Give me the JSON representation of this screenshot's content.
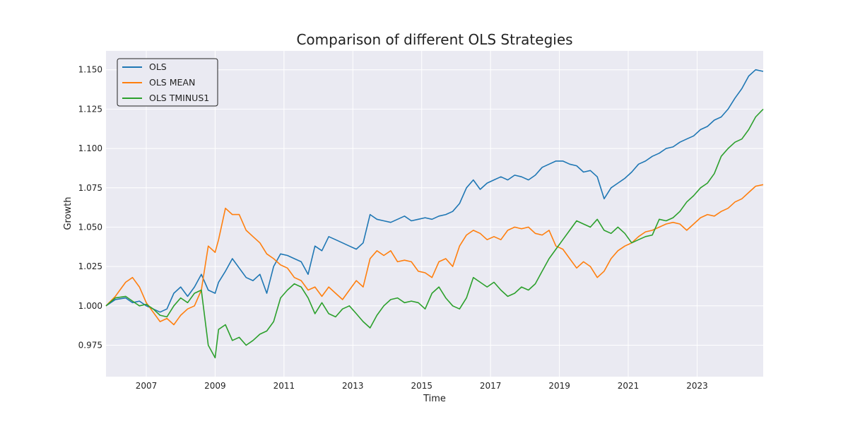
{
  "chart_data": {
    "type": "line",
    "title": "Comparison of different OLS Strategies",
    "xlabel": "Time",
    "ylabel": "Growth",
    "xlim": [
      2005.83,
      2024.92
    ],
    "ylim": [
      0.955,
      1.162
    ],
    "x_ticks": [
      2007,
      2009,
      2011,
      2013,
      2015,
      2017,
      2019,
      2021,
      2023
    ],
    "x_tick_labels": [
      "2007",
      "2009",
      "2011",
      "2013",
      "2015",
      "2017",
      "2019",
      "2021",
      "2023"
    ],
    "y_ticks": [
      0.975,
      1.0,
      1.025,
      1.05,
      1.075,
      1.1,
      1.125,
      1.15
    ],
    "y_tick_labels": [
      "0.975",
      "1.000",
      "1.025",
      "1.050",
      "1.075",
      "1.100",
      "1.125",
      "1.150"
    ],
    "grid": true,
    "legend_position": "top-left",
    "background": "#eaeaf2",
    "series": [
      {
        "name": "OLS",
        "color": "#1f77b4",
        "points": [
          [
            2005.83,
            1.0
          ],
          [
            2006.1,
            1.004
          ],
          [
            2006.4,
            1.005
          ],
          [
            2006.6,
            1.002
          ],
          [
            2006.8,
            1.003
          ],
          [
            2007.0,
            1.0
          ],
          [
            2007.2,
            0.998
          ],
          [
            2007.4,
            0.996
          ],
          [
            2007.6,
            0.998
          ],
          [
            2007.8,
            1.008
          ],
          [
            2008.0,
            1.012
          ],
          [
            2008.2,
            1.006
          ],
          [
            2008.4,
            1.012
          ],
          [
            2008.6,
            1.02
          ],
          [
            2008.8,
            1.01
          ],
          [
            2009.0,
            1.008
          ],
          [
            2009.1,
            1.015
          ],
          [
            2009.3,
            1.022
          ],
          [
            2009.5,
            1.03
          ],
          [
            2009.7,
            1.024
          ],
          [
            2009.9,
            1.018
          ],
          [
            2010.1,
            1.016
          ],
          [
            2010.3,
            1.02
          ],
          [
            2010.5,
            1.008
          ],
          [
            2010.7,
            1.025
          ],
          [
            2010.9,
            1.033
          ],
          [
            2011.1,
            1.032
          ],
          [
            2011.3,
            1.03
          ],
          [
            2011.5,
            1.028
          ],
          [
            2011.7,
            1.02
          ],
          [
            2011.9,
            1.038
          ],
          [
            2012.1,
            1.035
          ],
          [
            2012.3,
            1.044
          ],
          [
            2012.5,
            1.042
          ],
          [
            2012.7,
            1.04
          ],
          [
            2012.9,
            1.038
          ],
          [
            2013.1,
            1.036
          ],
          [
            2013.3,
            1.04
          ],
          [
            2013.5,
            1.058
          ],
          [
            2013.7,
            1.055
          ],
          [
            2013.9,
            1.054
          ],
          [
            2014.1,
            1.053
          ],
          [
            2014.3,
            1.055
          ],
          [
            2014.5,
            1.057
          ],
          [
            2014.7,
            1.054
          ],
          [
            2014.9,
            1.055
          ],
          [
            2015.1,
            1.056
          ],
          [
            2015.3,
            1.055
          ],
          [
            2015.5,
            1.057
          ],
          [
            2015.7,
            1.058
          ],
          [
            2015.9,
            1.06
          ],
          [
            2016.1,
            1.065
          ],
          [
            2016.3,
            1.075
          ],
          [
            2016.5,
            1.08
          ],
          [
            2016.7,
            1.074
          ],
          [
            2016.9,
            1.078
          ],
          [
            2017.1,
            1.08
          ],
          [
            2017.3,
            1.082
          ],
          [
            2017.5,
            1.08
          ],
          [
            2017.7,
            1.083
          ],
          [
            2017.9,
            1.082
          ],
          [
            2018.1,
            1.08
          ],
          [
            2018.3,
            1.083
          ],
          [
            2018.5,
            1.088
          ],
          [
            2018.7,
            1.09
          ],
          [
            2018.9,
            1.092
          ],
          [
            2019.1,
            1.092
          ],
          [
            2019.3,
            1.09
          ],
          [
            2019.5,
            1.089
          ],
          [
            2019.7,
            1.085
          ],
          [
            2019.9,
            1.086
          ],
          [
            2020.1,
            1.082
          ],
          [
            2020.3,
            1.068
          ],
          [
            2020.5,
            1.075
          ],
          [
            2020.7,
            1.078
          ],
          [
            2020.9,
            1.081
          ],
          [
            2021.1,
            1.085
          ],
          [
            2021.3,
            1.09
          ],
          [
            2021.5,
            1.092
          ],
          [
            2021.7,
            1.095
          ],
          [
            2021.9,
            1.097
          ],
          [
            2022.1,
            1.1
          ],
          [
            2022.3,
            1.101
          ],
          [
            2022.5,
            1.104
          ],
          [
            2022.7,
            1.106
          ],
          [
            2022.9,
            1.108
          ],
          [
            2023.1,
            1.112
          ],
          [
            2023.3,
            1.114
          ],
          [
            2023.5,
            1.118
          ],
          [
            2023.7,
            1.12
          ],
          [
            2023.9,
            1.125
          ],
          [
            2024.1,
            1.132
          ],
          [
            2024.3,
            1.138
          ],
          [
            2024.5,
            1.146
          ],
          [
            2024.7,
            1.15
          ],
          [
            2024.92,
            1.149
          ]
        ]
      },
      {
        "name": "OLS MEAN",
        "color": "#ff7f0e",
        "points": [
          [
            2005.83,
            1.0
          ],
          [
            2006.1,
            1.006
          ],
          [
            2006.4,
            1.015
          ],
          [
            2006.6,
            1.018
          ],
          [
            2006.8,
            1.012
          ],
          [
            2007.0,
            1.002
          ],
          [
            2007.2,
            0.996
          ],
          [
            2007.4,
            0.99
          ],
          [
            2007.6,
            0.992
          ],
          [
            2007.8,
            0.988
          ],
          [
            2008.0,
            0.994
          ],
          [
            2008.2,
            0.998
          ],
          [
            2008.4,
            1.0
          ],
          [
            2008.6,
            1.01
          ],
          [
            2008.8,
            1.038
          ],
          [
            2009.0,
            1.034
          ],
          [
            2009.1,
            1.042
          ],
          [
            2009.3,
            1.062
          ],
          [
            2009.5,
            1.058
          ],
          [
            2009.7,
            1.058
          ],
          [
            2009.9,
            1.048
          ],
          [
            2010.1,
            1.044
          ],
          [
            2010.3,
            1.04
          ],
          [
            2010.5,
            1.033
          ],
          [
            2010.7,
            1.03
          ],
          [
            2010.9,
            1.026
          ],
          [
            2011.1,
            1.024
          ],
          [
            2011.3,
            1.018
          ],
          [
            2011.5,
            1.016
          ],
          [
            2011.7,
            1.01
          ],
          [
            2011.9,
            1.012
          ],
          [
            2012.1,
            1.006
          ],
          [
            2012.3,
            1.012
          ],
          [
            2012.5,
            1.008
          ],
          [
            2012.7,
            1.004
          ],
          [
            2012.9,
            1.01
          ],
          [
            2013.1,
            1.016
          ],
          [
            2013.3,
            1.012
          ],
          [
            2013.5,
            1.03
          ],
          [
            2013.7,
            1.035
          ],
          [
            2013.9,
            1.032
          ],
          [
            2014.1,
            1.035
          ],
          [
            2014.3,
            1.028
          ],
          [
            2014.5,
            1.029
          ],
          [
            2014.7,
            1.028
          ],
          [
            2014.9,
            1.022
          ],
          [
            2015.1,
            1.021
          ],
          [
            2015.3,
            1.018
          ],
          [
            2015.5,
            1.028
          ],
          [
            2015.7,
            1.03
          ],
          [
            2015.9,
            1.025
          ],
          [
            2016.1,
            1.038
          ],
          [
            2016.3,
            1.045
          ],
          [
            2016.5,
            1.048
          ],
          [
            2016.7,
            1.046
          ],
          [
            2016.9,
            1.042
          ],
          [
            2017.1,
            1.044
          ],
          [
            2017.3,
            1.042
          ],
          [
            2017.5,
            1.048
          ],
          [
            2017.7,
            1.05
          ],
          [
            2017.9,
            1.049
          ],
          [
            2018.1,
            1.05
          ],
          [
            2018.3,
            1.046
          ],
          [
            2018.5,
            1.045
          ],
          [
            2018.7,
            1.048
          ],
          [
            2018.9,
            1.038
          ],
          [
            2019.1,
            1.036
          ],
          [
            2019.3,
            1.03
          ],
          [
            2019.5,
            1.024
          ],
          [
            2019.7,
            1.028
          ],
          [
            2019.9,
            1.025
          ],
          [
            2020.1,
            1.018
          ],
          [
            2020.3,
            1.022
          ],
          [
            2020.5,
            1.03
          ],
          [
            2020.7,
            1.035
          ],
          [
            2020.9,
            1.038
          ],
          [
            2021.1,
            1.04
          ],
          [
            2021.3,
            1.044
          ],
          [
            2021.5,
            1.047
          ],
          [
            2021.7,
            1.048
          ],
          [
            2021.9,
            1.05
          ],
          [
            2022.1,
            1.052
          ],
          [
            2022.3,
            1.053
          ],
          [
            2022.5,
            1.052
          ],
          [
            2022.7,
            1.048
          ],
          [
            2022.9,
            1.052
          ],
          [
            2023.1,
            1.056
          ],
          [
            2023.3,
            1.058
          ],
          [
            2023.5,
            1.057
          ],
          [
            2023.7,
            1.06
          ],
          [
            2023.9,
            1.062
          ],
          [
            2024.1,
            1.066
          ],
          [
            2024.3,
            1.068
          ],
          [
            2024.5,
            1.072
          ],
          [
            2024.7,
            1.076
          ],
          [
            2024.92,
            1.077
          ]
        ]
      },
      {
        "name": "OLS TMINUS1",
        "color": "#2ca02c",
        "points": [
          [
            2005.83,
            1.0
          ],
          [
            2006.1,
            1.005
          ],
          [
            2006.4,
            1.006
          ],
          [
            2006.6,
            1.003
          ],
          [
            2006.8,
            1.0
          ],
          [
            2007.0,
            1.001
          ],
          [
            2007.2,
            0.998
          ],
          [
            2007.4,
            0.994
          ],
          [
            2007.6,
            0.993
          ],
          [
            2007.8,
            1.0
          ],
          [
            2008.0,
            1.005
          ],
          [
            2008.2,
            1.002
          ],
          [
            2008.4,
            1.008
          ],
          [
            2008.6,
            1.01
          ],
          [
            2008.8,
            0.975
          ],
          [
            2009.0,
            0.967
          ],
          [
            2009.1,
            0.985
          ],
          [
            2009.3,
            0.988
          ],
          [
            2009.5,
            0.978
          ],
          [
            2009.7,
            0.98
          ],
          [
            2009.9,
            0.975
          ],
          [
            2010.1,
            0.978
          ],
          [
            2010.3,
            0.982
          ],
          [
            2010.5,
            0.984
          ],
          [
            2010.7,
            0.99
          ],
          [
            2010.9,
            1.005
          ],
          [
            2011.1,
            1.01
          ],
          [
            2011.3,
            1.014
          ],
          [
            2011.5,
            1.012
          ],
          [
            2011.7,
            1.005
          ],
          [
            2011.9,
            0.995
          ],
          [
            2012.1,
            1.002
          ],
          [
            2012.3,
            0.995
          ],
          [
            2012.5,
            0.993
          ],
          [
            2012.7,
            0.998
          ],
          [
            2012.9,
            1.0
          ],
          [
            2013.1,
            0.995
          ],
          [
            2013.3,
            0.99
          ],
          [
            2013.5,
            0.986
          ],
          [
            2013.7,
            0.994
          ],
          [
            2013.9,
            1.0
          ],
          [
            2014.1,
            1.004
          ],
          [
            2014.3,
            1.005
          ],
          [
            2014.5,
            1.002
          ],
          [
            2014.7,
            1.003
          ],
          [
            2014.9,
            1.002
          ],
          [
            2015.1,
            0.998
          ],
          [
            2015.3,
            1.008
          ],
          [
            2015.5,
            1.012
          ],
          [
            2015.7,
            1.005
          ],
          [
            2015.9,
            1.0
          ],
          [
            2016.1,
            0.998
          ],
          [
            2016.3,
            1.005
          ],
          [
            2016.5,
            1.018
          ],
          [
            2016.7,
            1.015
          ],
          [
            2016.9,
            1.012
          ],
          [
            2017.1,
            1.015
          ],
          [
            2017.3,
            1.01
          ],
          [
            2017.5,
            1.006
          ],
          [
            2017.7,
            1.008
          ],
          [
            2017.9,
            1.012
          ],
          [
            2018.1,
            1.01
          ],
          [
            2018.3,
            1.014
          ],
          [
            2018.5,
            1.022
          ],
          [
            2018.7,
            1.03
          ],
          [
            2018.9,
            1.036
          ],
          [
            2019.1,
            1.042
          ],
          [
            2019.3,
            1.048
          ],
          [
            2019.5,
            1.054
          ],
          [
            2019.7,
            1.052
          ],
          [
            2019.9,
            1.05
          ],
          [
            2020.1,
            1.055
          ],
          [
            2020.3,
            1.048
          ],
          [
            2020.5,
            1.046
          ],
          [
            2020.7,
            1.05
          ],
          [
            2020.9,
            1.046
          ],
          [
            2021.1,
            1.04
          ],
          [
            2021.3,
            1.042
          ],
          [
            2021.5,
            1.044
          ],
          [
            2021.7,
            1.045
          ],
          [
            2021.9,
            1.055
          ],
          [
            2022.1,
            1.054
          ],
          [
            2022.3,
            1.056
          ],
          [
            2022.5,
            1.06
          ],
          [
            2022.7,
            1.066
          ],
          [
            2022.9,
            1.07
          ],
          [
            2023.1,
            1.075
          ],
          [
            2023.3,
            1.078
          ],
          [
            2023.5,
            1.084
          ],
          [
            2023.7,
            1.095
          ],
          [
            2023.9,
            1.1
          ],
          [
            2024.1,
            1.104
          ],
          [
            2024.3,
            1.106
          ],
          [
            2024.5,
            1.112
          ],
          [
            2024.7,
            1.12
          ],
          [
            2024.92,
            1.125
          ]
        ]
      }
    ]
  }
}
